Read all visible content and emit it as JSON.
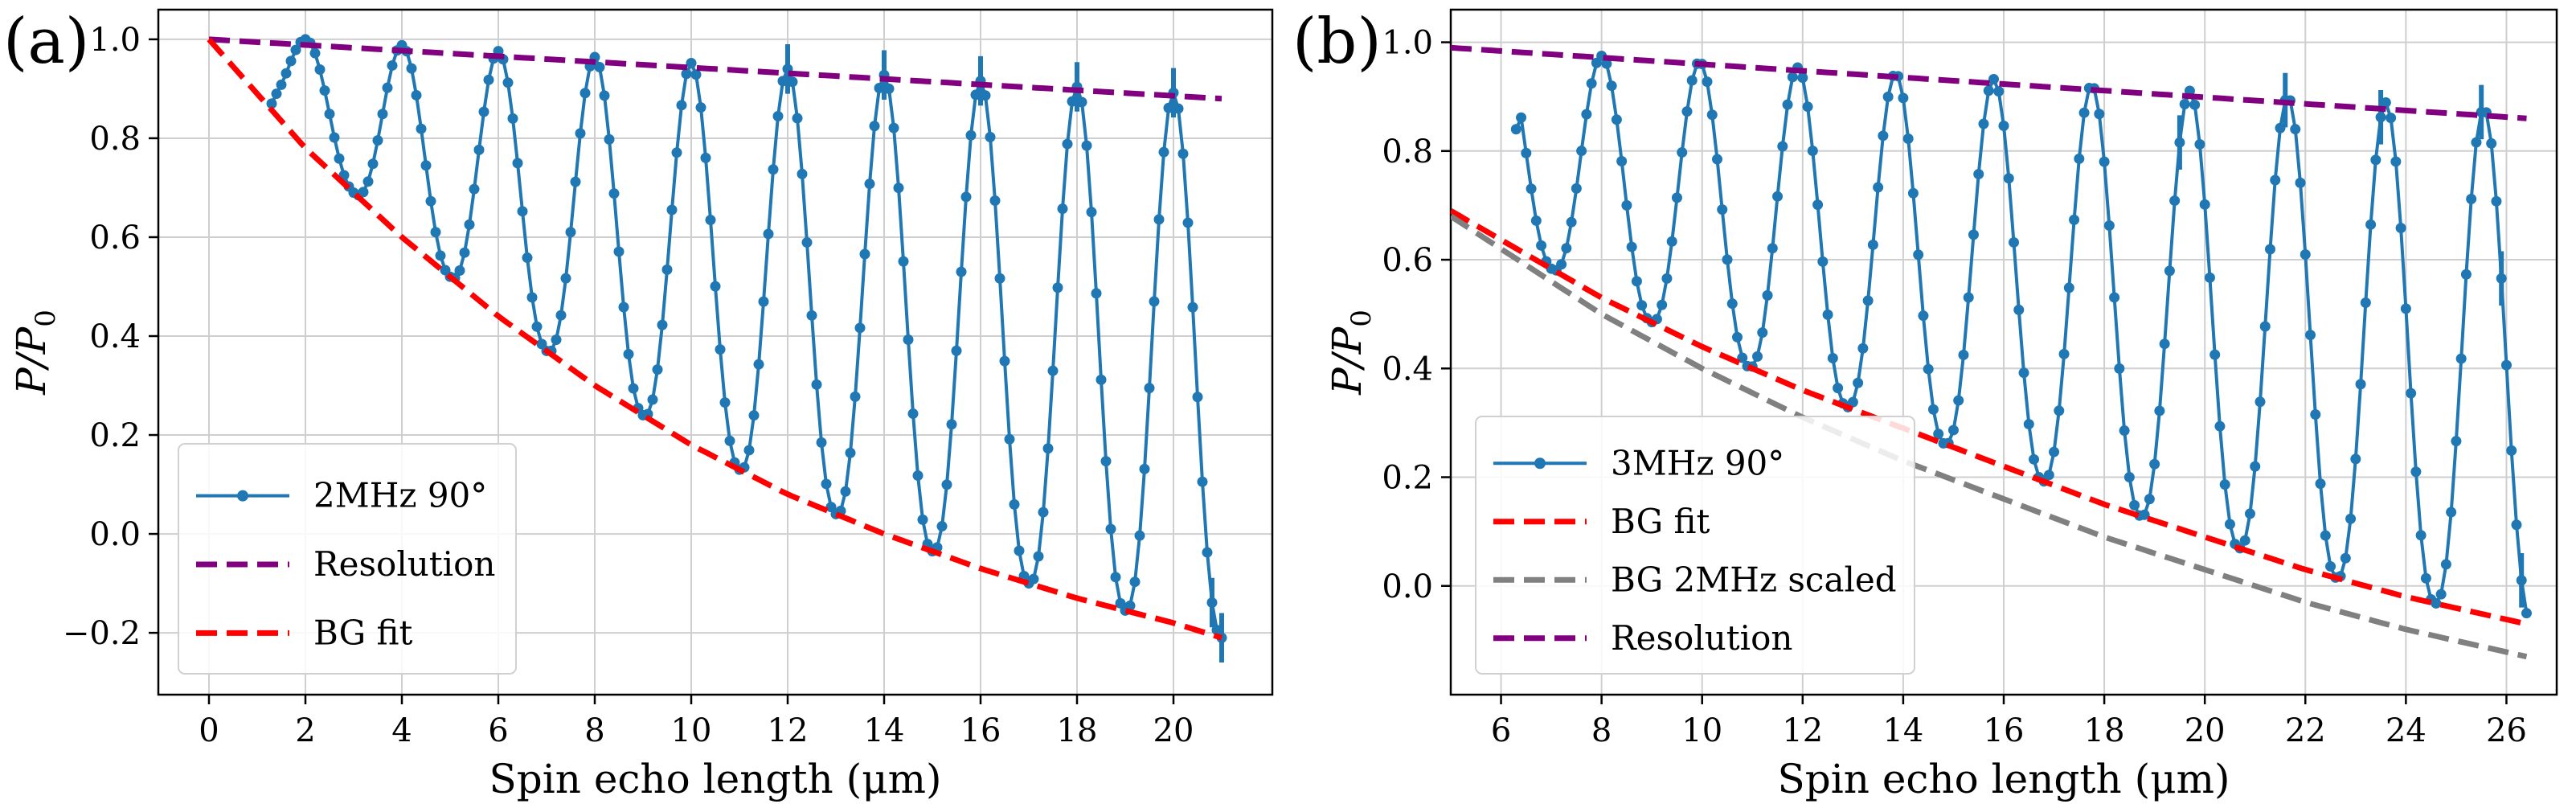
{
  "chart_data": [
    {
      "type": "line",
      "panel_label": "(a)",
      "xlabel": "Spin echo length (μm)",
      "ylabel": "P/P",
      "ylabel_sub": "0",
      "xlim": [
        -1.05,
        22.05
      ],
      "ylim": [
        -0.325,
        1.06
      ],
      "xticks": [
        0,
        2,
        4,
        6,
        8,
        10,
        12,
        14,
        16,
        18,
        20
      ],
      "yticks": [
        -0.2,
        0.0,
        0.2,
        0.4,
        0.6,
        0.8,
        1.0
      ],
      "grid": true,
      "legend_position": "lower-left",
      "legend_entries": [
        "2MHz 90°",
        "Resolution",
        "BG fit"
      ],
      "colors": {
        "data": "#1f77b4",
        "resolution": "#800080",
        "bg_fit": "#ff0000"
      },
      "series": [
        {
          "name": "2MHz 90°",
          "style": "line-markers",
          "envelope": {
            "period": 2.0,
            "first_peak": 2.0,
            "peak_start": 1.0,
            "peak_slope": -0.006,
            "x_start": 1.3,
            "x_end": 21.0,
            "step": 0.1,
            "first_value": 0.87
          },
          "error_bars_at": [
            12.0,
            14.0,
            16.0,
            18.0,
            20.0,
            20.8,
            21.0
          ]
        },
        {
          "name": "Resolution",
          "style": "dashed",
          "x": [
            0,
            21
          ],
          "y": [
            1.0,
            0.88
          ]
        },
        {
          "name": "BG fit",
          "style": "dashed",
          "x": [
            0,
            2,
            4,
            6,
            8,
            10,
            12,
            14,
            16,
            18,
            20,
            21
          ],
          "y": [
            1.0,
            0.78,
            0.6,
            0.44,
            0.3,
            0.18,
            0.08,
            0.0,
            -0.07,
            -0.13,
            -0.18,
            -0.21
          ]
        }
      ]
    },
    {
      "type": "line",
      "panel_label": "(b)",
      "xlabel": "Spin echo length (μm)",
      "ylabel": "P/P",
      "ylabel_sub": "0",
      "xlim": [
        5.0,
        27.0
      ],
      "ylim": [
        -0.2,
        1.06
      ],
      "xticks": [
        6,
        8,
        10,
        12,
        14,
        16,
        18,
        20,
        22,
        24,
        26
      ],
      "yticks": [
        0.0,
        0.2,
        0.4,
        0.6,
        0.8,
        1.0
      ],
      "grid": true,
      "legend_position": "lower-left",
      "legend_entries": [
        "3MHz 90°",
        "BG fit",
        "BG 2MHz scaled",
        "Resolution"
      ],
      "colors": {
        "data": "#1f77b4",
        "resolution": "#800080",
        "bg_fit": "#ff0000",
        "bg_scaled": "#808080"
      },
      "series": [
        {
          "name": "3MHz 90°",
          "style": "line-markers",
          "envelope": {
            "period": 1.95,
            "first_peak": 8.0,
            "peak_start": 0.975,
            "peak_slope": -0.0055,
            "x_start": 6.3,
            "x_end": 26.4,
            "step": 0.1,
            "first_value": 0.84
          },
          "error_bars_at": [
            19.5,
            21.6,
            23.5,
            25.5,
            25.9,
            26.3
          ]
        },
        {
          "name": "BG fit",
          "style": "dashed",
          "x": [
            5,
            8,
            10,
            12,
            14,
            16,
            18,
            20,
            22,
            24,
            26.4
          ],
          "y": [
            0.69,
            0.53,
            0.44,
            0.36,
            0.29,
            0.22,
            0.15,
            0.09,
            0.03,
            -0.02,
            -0.07
          ]
        },
        {
          "name": "BG 2MHz scaled",
          "style": "dashed",
          "x": [
            5,
            8,
            10,
            12,
            14,
            16,
            18,
            20,
            22,
            24,
            26.4
          ],
          "y": [
            0.68,
            0.5,
            0.4,
            0.31,
            0.23,
            0.16,
            0.09,
            0.03,
            -0.03,
            -0.08,
            -0.13
          ]
        },
        {
          "name": "Resolution",
          "style": "dashed",
          "x": [
            5,
            26.4
          ],
          "y": [
            0.99,
            0.86
          ]
        }
      ]
    }
  ]
}
